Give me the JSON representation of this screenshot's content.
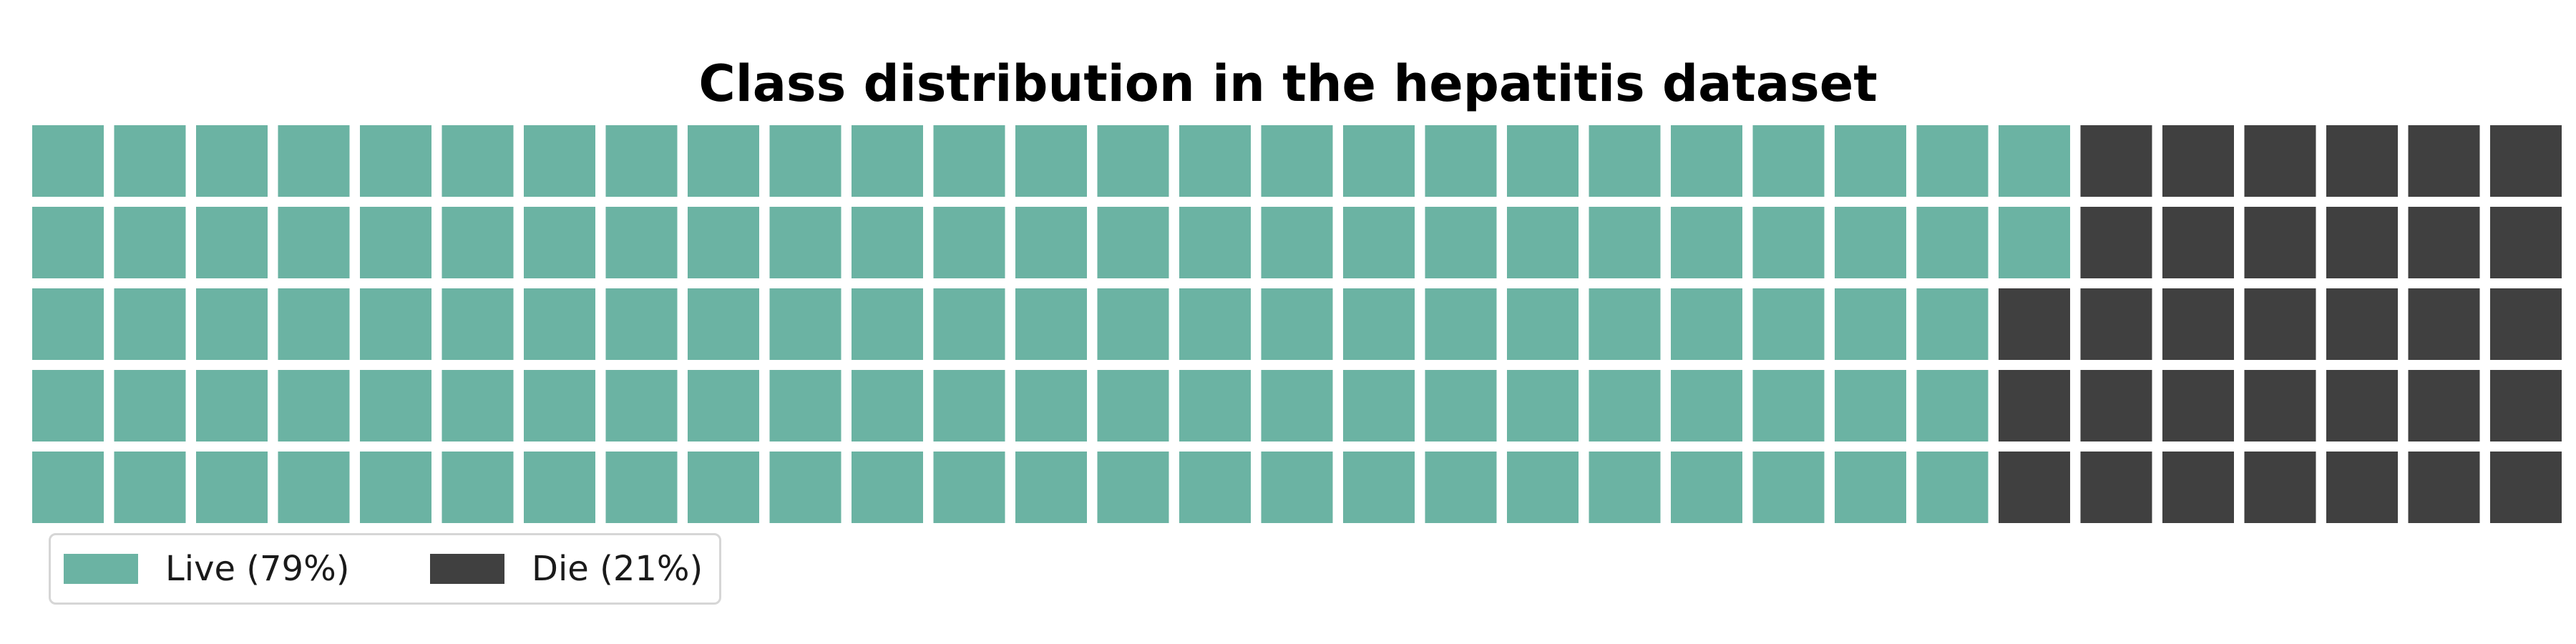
{
  "chart_data": {
    "type": "waffle",
    "title": "Class distribution in the hepatitis dataset",
    "rows": 5,
    "columns": 31,
    "fill_order": "column-major, top-to-bottom within each column",
    "categories": [
      {
        "name": "Live (79%)",
        "cells": 122,
        "percent": 79,
        "color": "#6bb3a3"
      },
      {
        "name": "Die (21%)",
        "cells": 33,
        "percent": 21,
        "color": "#404040"
      }
    ],
    "legend": {
      "position": "bottom-left",
      "columns": 2
    },
    "grid": false,
    "axes": false
  }
}
